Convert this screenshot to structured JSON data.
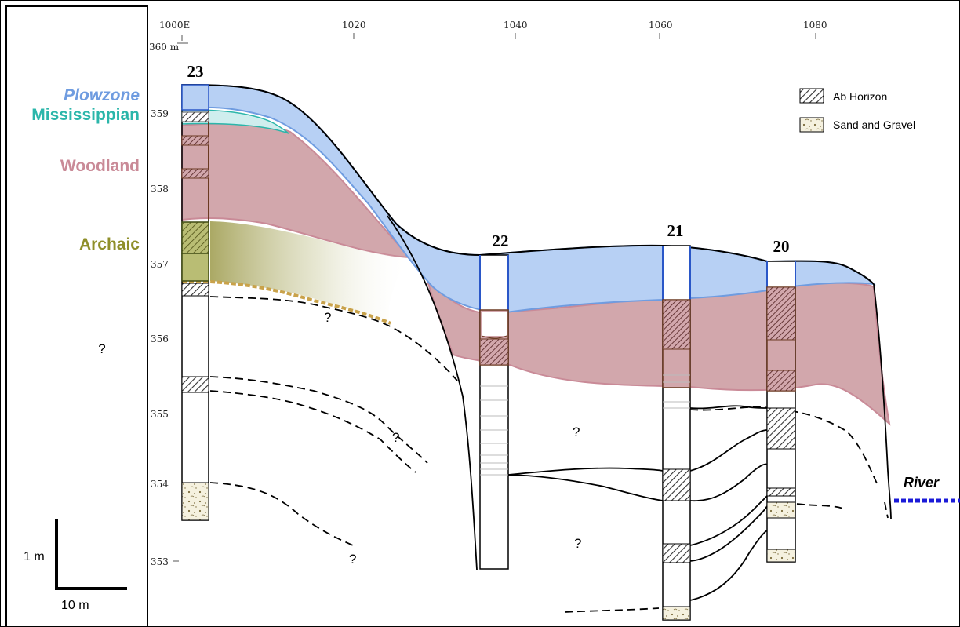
{
  "periods": {
    "plowzone": "Plowzone",
    "mississippian": "Mississippian",
    "woodland": "Woodland",
    "archaic": "Archaic",
    "unknown": "?"
  },
  "scale_bar": {
    "vertical": "1 m",
    "horizontal": "10 m"
  },
  "x_axis": [
    "1000E",
    "1020",
    "1040",
    "1060",
    "1080"
  ],
  "y_axis": [
    "360 m",
    "359",
    "358",
    "357",
    "356",
    "355",
    "354",
    "353"
  ],
  "cores": [
    "23",
    "22",
    "21",
    "20"
  ],
  "legend": {
    "ab_horizon": "Ab Horizon",
    "sand_gravel": "Sand and Gravel"
  },
  "question_mark": "?",
  "river": "River",
  "colors": {
    "plowzone": "#6f9ce0",
    "plowzone_fill": "#b7d0f4",
    "mississippian": "#2bb6aa",
    "mississippian_fill": "#cfeeee",
    "woodland": "#c98a97",
    "woodland_fill": "#d2a7ac",
    "archaic": "#8f8f2a",
    "core_line": "#2a57c8",
    "brown": "#6b3a22",
    "river": "#1a1ad8"
  }
}
